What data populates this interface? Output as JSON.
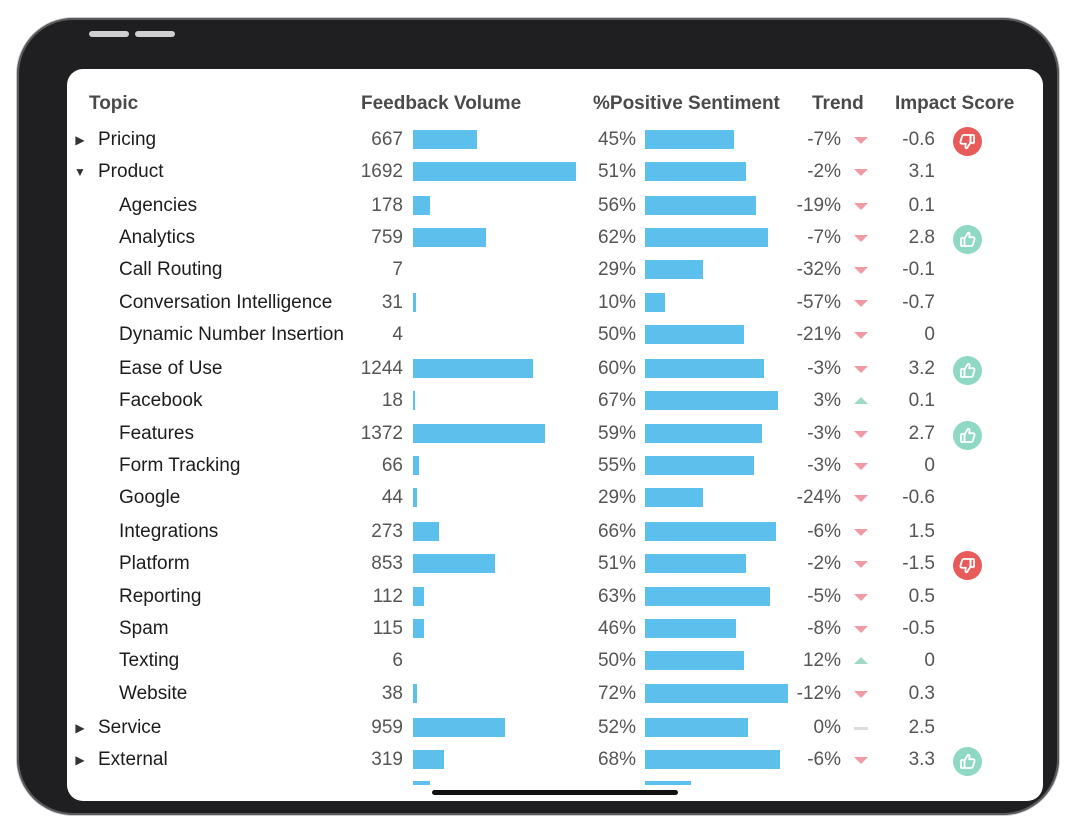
{
  "headers": {
    "topic": "Topic",
    "volume": "Feedback Volume",
    "sentiment": "%Positive Sentiment",
    "trend": "Trend",
    "impact": "Impact Score"
  },
  "colors": {
    "bar": "#5dc0ec",
    "trend_down": "#f29aa4",
    "trend_up": "#9fd9c7",
    "badge_positive": "#8fd8c4",
    "badge_negative": "#e85b5b"
  },
  "volume_max": 1692,
  "rows": [
    {
      "topic": "Pricing",
      "level": 0,
      "caret": "collapsed",
      "volume": "667",
      "volume_value": 667,
      "sentiment": "45%",
      "sentiment_value": 45,
      "trend": "-7%",
      "trend_dir": "down",
      "impact": "-0.6",
      "badge": "thumbs-down-icon"
    },
    {
      "topic": "Product",
      "level": 0,
      "caret": "expanded",
      "volume": "1692",
      "volume_value": 1692,
      "sentiment": "51%",
      "sentiment_value": 51,
      "trend": "-2%",
      "trend_dir": "down",
      "impact": "3.1",
      "badge": ""
    },
    {
      "topic": "Agencies",
      "level": 1,
      "caret": "",
      "volume": "178",
      "volume_value": 178,
      "sentiment": "56%",
      "sentiment_value": 56,
      "trend": "-19%",
      "trend_dir": "down",
      "impact": "0.1",
      "badge": ""
    },
    {
      "topic": "Analytics",
      "level": 1,
      "caret": "",
      "volume": "759",
      "volume_value": 759,
      "sentiment": "62%",
      "sentiment_value": 62,
      "trend": "-7%",
      "trend_dir": "down",
      "impact": "2.8",
      "badge": "thumbs-up-icon"
    },
    {
      "topic": "Call Routing",
      "level": 1,
      "caret": "",
      "volume": "7",
      "volume_value": 7,
      "sentiment": "29%",
      "sentiment_value": 29,
      "trend": "-32%",
      "trend_dir": "down",
      "impact": "-0.1",
      "badge": ""
    },
    {
      "topic": "Conversation Intelligence",
      "level": 1,
      "caret": "",
      "volume": "31",
      "volume_value": 31,
      "sentiment": "10%",
      "sentiment_value": 10,
      "trend": "-57%",
      "trend_dir": "down",
      "impact": "-0.7",
      "badge": ""
    },
    {
      "topic": "Dynamic Number Insertion",
      "level": 1,
      "caret": "",
      "volume": "4",
      "volume_value": 4,
      "sentiment": "50%",
      "sentiment_value": 50,
      "trend": "-21%",
      "trend_dir": "down",
      "impact": "0",
      "badge": ""
    },
    {
      "topic": "Ease of Use",
      "level": 1,
      "caret": "",
      "volume": "1244",
      "volume_value": 1244,
      "sentiment": "60%",
      "sentiment_value": 60,
      "trend": "-3%",
      "trend_dir": "down",
      "impact": "3.2",
      "badge": "thumbs-up-icon"
    },
    {
      "topic": "Facebook",
      "level": 1,
      "caret": "",
      "volume": "18",
      "volume_value": 18,
      "sentiment": "67%",
      "sentiment_value": 67,
      "trend": "3%",
      "trend_dir": "up",
      "impact": "0.1",
      "badge": ""
    },
    {
      "topic": "Features",
      "level": 1,
      "caret": "",
      "volume": "1372",
      "volume_value": 1372,
      "sentiment": "59%",
      "sentiment_value": 59,
      "trend": "-3%",
      "trend_dir": "down",
      "impact": "2.7",
      "badge": "thumbs-up-icon"
    },
    {
      "topic": "Form Tracking",
      "level": 1,
      "caret": "",
      "volume": "66",
      "volume_value": 66,
      "sentiment": "55%",
      "sentiment_value": 55,
      "trend": "-3%",
      "trend_dir": "down",
      "impact": "0",
      "badge": ""
    },
    {
      "topic": "Google",
      "level": 1,
      "caret": "",
      "volume": "44",
      "volume_value": 44,
      "sentiment": "29%",
      "sentiment_value": 29,
      "trend": "-24%",
      "trend_dir": "down",
      "impact": "-0.6",
      "badge": ""
    },
    {
      "topic": "Integrations",
      "level": 1,
      "caret": "",
      "volume": "273",
      "volume_value": 273,
      "sentiment": "66%",
      "sentiment_value": 66,
      "trend": "-6%",
      "trend_dir": "down",
      "impact": "1.5",
      "badge": ""
    },
    {
      "topic": "Platform",
      "level": 1,
      "caret": "",
      "volume": "853",
      "volume_value": 853,
      "sentiment": "51%",
      "sentiment_value": 51,
      "trend": "-2%",
      "trend_dir": "down",
      "impact": "-1.5",
      "badge": "thumbs-down-icon"
    },
    {
      "topic": "Reporting",
      "level": 1,
      "caret": "",
      "volume": "112",
      "volume_value": 112,
      "sentiment": "63%",
      "sentiment_value": 63,
      "trend": "-5%",
      "trend_dir": "down",
      "impact": "0.5",
      "badge": ""
    },
    {
      "topic": "Spam",
      "level": 1,
      "caret": "",
      "volume": "115",
      "volume_value": 115,
      "sentiment": "46%",
      "sentiment_value": 46,
      "trend": "-8%",
      "trend_dir": "down",
      "impact": "-0.5",
      "badge": ""
    },
    {
      "topic": "Texting",
      "level": 1,
      "caret": "",
      "volume": "6",
      "volume_value": 6,
      "sentiment": "50%",
      "sentiment_value": 50,
      "trend": "12%",
      "trend_dir": "up",
      "impact": "0",
      "badge": ""
    },
    {
      "topic": "Website",
      "level": 1,
      "caret": "",
      "volume": "38",
      "volume_value": 38,
      "sentiment": "72%",
      "sentiment_value": 72,
      "trend": "-12%",
      "trend_dir": "down",
      "impact": "0.3",
      "badge": ""
    },
    {
      "topic": "Service",
      "level": 0,
      "caret": "collapsed",
      "volume": "959",
      "volume_value": 959,
      "sentiment": "52%",
      "sentiment_value": 52,
      "trend": "0%",
      "trend_dir": "flat",
      "impact": "2.5",
      "badge": ""
    },
    {
      "topic": "External",
      "level": 0,
      "caret": "collapsed",
      "volume": "319",
      "volume_value": 319,
      "sentiment": "68%",
      "sentiment_value": 68,
      "trend": "-6%",
      "trend_dir": "down",
      "impact": "3.3",
      "badge": "thumbs-up-icon"
    }
  ]
}
